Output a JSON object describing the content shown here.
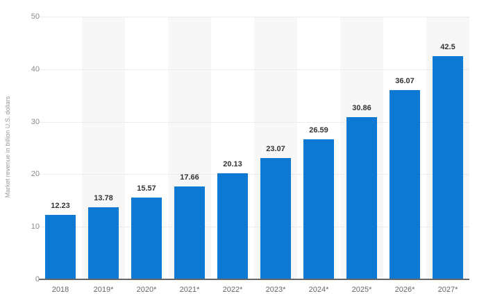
{
  "chart_data": {
    "type": "bar",
    "title": "",
    "xlabel": "",
    "ylabel": "Market revenue in billion U.S. dollars",
    "categories": [
      "2018",
      "2019*",
      "2020*",
      "2021*",
      "2022*",
      "2023*",
      "2024*",
      "2025*",
      "2026*",
      "2027*"
    ],
    "values": [
      12.23,
      13.78,
      15.57,
      17.66,
      20.13,
      23.07,
      26.59,
      30.86,
      36.07,
      42.5
    ],
    "value_labels": [
      "12.23",
      "13.78",
      "15.57",
      "17.66",
      "20.13",
      "23.07",
      "26.59",
      "30.86",
      "36.07",
      "42.5"
    ],
    "ylim": [
      0,
      50
    ],
    "yticks": [
      0,
      10,
      20,
      30,
      40,
      50
    ],
    "grid": "horizontal-dotted",
    "legend": "none",
    "bar_color": "#0d79d2",
    "stripe_color": "#f7f7f7",
    "striped_columns": "alternating-starting-second"
  }
}
